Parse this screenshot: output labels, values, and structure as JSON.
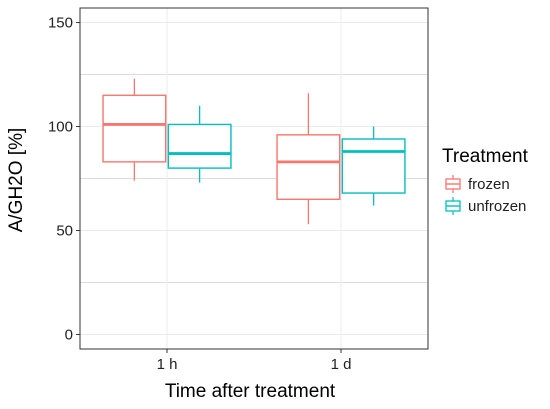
{
  "chart_data": {
    "type": "boxplot",
    "xlabel": "Time after treatment",
    "ylabel": "A/GH2O [%]",
    "categories": [
      "1 h",
      "1 d"
    ],
    "ylim": [
      -7,
      157
    ],
    "yticks": [
      0,
      50,
      100,
      150
    ],
    "ytick_labels": [
      "0",
      "50",
      "100",
      "150"
    ],
    "grid": true,
    "legend": {
      "title": "Treatment",
      "placement": "right"
    },
    "series": [
      {
        "name": "frozen",
        "color": "#F8766D",
        "boxes": [
          {
            "category": "1 h",
            "whisker_low": 74,
            "q1": 83,
            "median": 101,
            "q3": 115,
            "whisker_high": 123
          },
          {
            "category": "1 d",
            "whisker_low": 53,
            "q1": 65,
            "median": 83,
            "q3": 96,
            "whisker_high": 116
          }
        ]
      },
      {
        "name": "unfrozen",
        "color": "#00BFC4",
        "boxes": [
          {
            "category": "1 h",
            "whisker_low": 73,
            "q1": 80,
            "median": 87,
            "q3": 101,
            "whisker_high": 110
          },
          {
            "category": "1 d",
            "whisker_low": 62,
            "q1": 68,
            "median": 88,
            "q3": 94,
            "whisker_high": 100
          }
        ]
      }
    ]
  }
}
